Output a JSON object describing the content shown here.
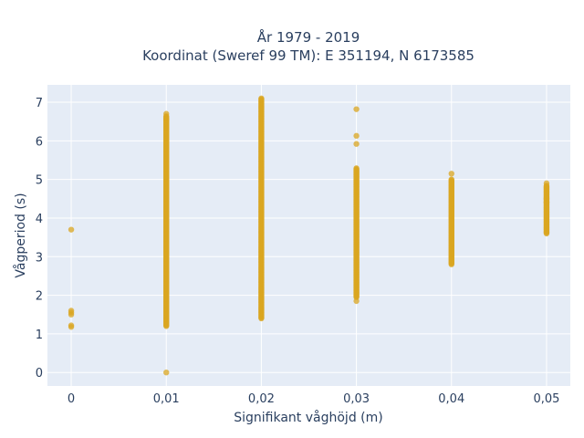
{
  "chart_data": {
    "type": "scatter",
    "title_line1": "År 1979 - 2019",
    "title_line2": "Koordinat (Sweref 99 TM): E 351194, N 6173585",
    "xlabel": "Signifikant våghöjd (m)",
    "ylabel": "Vågperiod (s)",
    "x_tick_labels": [
      "0",
      "0,01",
      "0,02",
      "0,03",
      "0,04",
      "0,05"
    ],
    "x_ticks": [
      0,
      0.01,
      0.02,
      0.03,
      0.04,
      0.05
    ],
    "y_ticks": [
      0,
      1,
      2,
      3,
      4,
      5,
      6,
      7
    ],
    "xlim": [
      -0.0025,
      0.0525
    ],
    "ylim": [
      -0.35,
      7.45
    ],
    "grid": true,
    "marker_color": "#DAA520",
    "plot_bg": "#E5ECF6",
    "series": [
      {
        "points": [
          {
            "x": 0,
            "y": 3.7
          },
          {
            "x": 0,
            "y": 1.6
          },
          {
            "x": 0,
            "y": 1.55
          },
          {
            "x": 0,
            "y": 1.5
          },
          {
            "x": 0,
            "y": 1.22
          },
          {
            "x": 0,
            "y": 1.18
          },
          {
            "x": 0.01,
            "y": 0.0
          }
        ],
        "vertical_runs": [
          {
            "x": 0.01,
            "y_from": 1.2,
            "y_to": 6.65
          },
          {
            "x": 0.02,
            "y_from": 1.4,
            "y_to": 7.1
          },
          {
            "x": 0.03,
            "y_from": 1.95,
            "y_to": 5.3
          },
          {
            "x": 0.04,
            "y_from": 2.8,
            "y_to": 5.0
          },
          {
            "x": 0.05,
            "y_from": 3.6,
            "y_to": 4.85
          }
        ],
        "extra_points": [
          {
            "x": 0.01,
            "y": 6.7
          },
          {
            "x": 0.01,
            "y": 6.55
          },
          {
            "x": 0.03,
            "y": 6.82
          },
          {
            "x": 0.03,
            "y": 6.13
          },
          {
            "x": 0.03,
            "y": 5.92
          },
          {
            "x": 0.03,
            "y": 1.85
          },
          {
            "x": 0.04,
            "y": 5.15
          },
          {
            "x": 0.05,
            "y": 4.9
          },
          {
            "x": 0.05,
            "y": 4.5
          },
          {
            "x": 0.05,
            "y": 4.4
          }
        ]
      }
    ]
  }
}
